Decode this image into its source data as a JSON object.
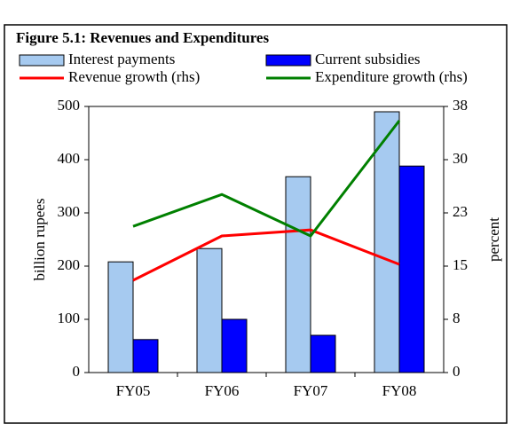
{
  "chart_data": {
    "type": "bar",
    "title": "Figure 5.1: Revenues and Expenditures",
    "categories": [
      "FY05",
      "FY06",
      "FY07",
      "FY08"
    ],
    "series": [
      {
        "name": "Interest payments",
        "color": "#a6caf0",
        "type": "bar",
        "values": [
          208,
          233,
          368,
          490
        ]
      },
      {
        "name": "Current subsidies",
        "color": "#0000ff",
        "type": "bar",
        "values": [
          62,
          100,
          70,
          388
        ]
      },
      {
        "name": "Revenue growth (rhs)",
        "color": "#ff0000",
        "type": "line",
        "axis": "y2",
        "values": [
          13.0,
          19.25,
          20.1,
          15.25
        ]
      },
      {
        "name": "Expenditure growth (rhs)",
        "color": "#008000",
        "type": "line",
        "axis": "y2",
        "values": [
          20.6,
          25.1,
          19.25,
          35.5
        ]
      }
    ],
    "ylabel": "billion rupees",
    "y2label": "percent",
    "ylim": [
      0,
      500
    ],
    "yticks": [
      0,
      100,
      200,
      300,
      400,
      500
    ],
    "y2lim": [
      0,
      37.5
    ],
    "y2ticks": [
      0,
      {
        "value": 7.5,
        "label": "8"
      },
      15,
      {
        "value": 22.5,
        "label": "23"
      },
      30,
      {
        "value": 37.5,
        "label": "38"
      }
    ]
  }
}
